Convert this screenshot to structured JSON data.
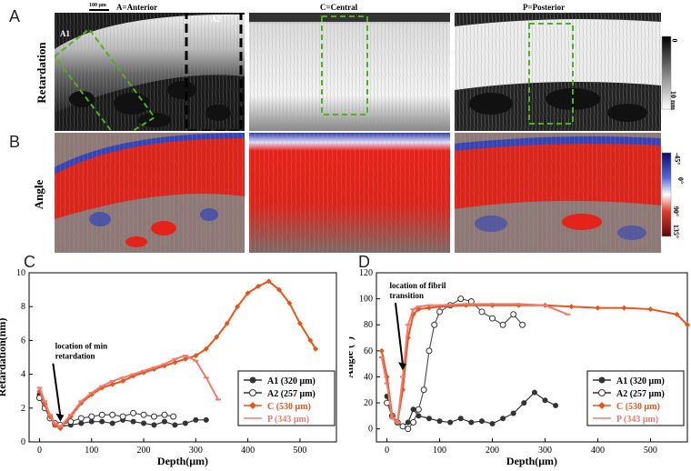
{
  "panel_letters": {
    "a": "A",
    "b": "B",
    "c": "C",
    "d": "D"
  },
  "row_labels": {
    "retardation": "Retardation",
    "angle": "Angle"
  },
  "image_titles": {
    "anterior": "A=Anterior",
    "central": "C=Central",
    "posterior": "P=Posterior"
  },
  "region_labels": {
    "a1": "A1",
    "a2": "A2"
  },
  "scale_bar": "100 μm",
  "colorbar_retardation": {
    "top": "0",
    "bottom": "10 nm"
  },
  "colorbar_angle": {
    "top1": "-45°",
    "top2": "0°",
    "bottom1": "90°",
    "bottom2": "135°"
  },
  "colors": {
    "a1": "#333333",
    "a2": "#ffffff",
    "c": "#e8541a",
    "p": "#f07a70",
    "roi": "#4db31a"
  },
  "chart_data": [
    {
      "type": "line",
      "panel": "C",
      "xlabel": "Depth(μm)",
      "ylabel": "Retardation(nm)",
      "xlim": [
        -20,
        570
      ],
      "ylim": [
        0,
        10
      ],
      "xticks": [
        0,
        100,
        200,
        300,
        400,
        500
      ],
      "yticks": [
        0,
        2,
        4,
        6,
        8,
        10
      ],
      "annotation": {
        "text": [
          "location of min",
          "retardation"
        ],
        "x": 30,
        "y": 5.5,
        "arrow_to": [
          40,
          1.2
        ]
      },
      "series": [
        {
          "name": "A1 (320 μm)",
          "x": [
            0,
            10,
            20,
            30,
            40,
            60,
            80,
            100,
            120,
            140,
            160,
            180,
            200,
            220,
            240,
            260,
            280,
            300,
            320
          ],
          "y": [
            2.8,
            2.2,
            1.5,
            1.0,
            0.9,
            1.0,
            1.1,
            1.2,
            1.2,
            1.1,
            1.3,
            1.2,
            1.1,
            1.0,
            1.2,
            1.0,
            1.1,
            1.3,
            1.3
          ]
        },
        {
          "name": "A2 (257 μm)",
          "x": [
            0,
            10,
            20,
            30,
            40,
            60,
            80,
            100,
            120,
            140,
            160,
            180,
            200,
            220,
            240,
            257
          ],
          "y": [
            2.6,
            2.0,
            1.4,
            1.1,
            1.0,
            1.2,
            1.4,
            1.5,
            1.6,
            1.6,
            1.5,
            1.7,
            1.6,
            1.5,
            1.6,
            1.5
          ]
        },
        {
          "name": "C (530 μm)",
          "x": [
            0,
            10,
            20,
            30,
            40,
            60,
            80,
            100,
            120,
            140,
            160,
            180,
            200,
            220,
            240,
            260,
            280,
            300,
            320,
            340,
            360,
            380,
            400,
            420,
            440,
            460,
            480,
            500,
            520,
            530
          ],
          "y": [
            3.0,
            2.2,
            1.5,
            1.0,
            0.8,
            1.5,
            2.3,
            2.8,
            3.2,
            3.4,
            3.6,
            3.9,
            4.1,
            4.3,
            4.5,
            4.7,
            4.9,
            5.1,
            5.5,
            6.2,
            7.0,
            8.0,
            8.8,
            9.2,
            9.5,
            9.0,
            8.2,
            7.0,
            6.0,
            5.5
          ]
        },
        {
          "name": "P (343 μm)",
          "x": [
            0,
            10,
            20,
            30,
            40,
            60,
            80,
            100,
            120,
            140,
            160,
            180,
            200,
            220,
            240,
            260,
            280,
            300,
            320,
            343
          ],
          "y": [
            3.2,
            2.4,
            1.6,
            1.1,
            0.9,
            1.6,
            2.4,
            2.9,
            3.3,
            3.6,
            3.8,
            4.0,
            4.2,
            4.4,
            4.6,
            4.9,
            5.1,
            4.8,
            3.8,
            2.5
          ]
        }
      ],
      "legend": "bottom-right"
    },
    {
      "type": "line",
      "panel": "D",
      "xlabel": "Depth(μm)",
      "ylabel": "Angle (°)",
      "xlim": [
        -20,
        570
      ],
      "ylim": [
        -10,
        120
      ],
      "xticks": [
        0,
        100,
        200,
        300,
        400,
        500
      ],
      "yticks": [
        0,
        20,
        40,
        60,
        80,
        100,
        120
      ],
      "annotation": {
        "text": [
          "location of fibril",
          "transition"
        ],
        "x": 5,
        "y": 108,
        "arrow_to": [
          30,
          45
        ]
      },
      "series": [
        {
          "name": "A1 (320 μm)",
          "x": [
            0,
            10,
            20,
            30,
            40,
            50,
            60,
            80,
            100,
            120,
            140,
            160,
            180,
            200,
            220,
            240,
            260,
            280,
            300,
            320
          ],
          "y": [
            25,
            10,
            5,
            2,
            5,
            15,
            10,
            8,
            6,
            5,
            8,
            5,
            6,
            4,
            8,
            12,
            20,
            28,
            22,
            18
          ]
        },
        {
          "name": "A2 (257 μm)",
          "x": [
            0,
            10,
            20,
            30,
            40,
            50,
            60,
            70,
            80,
            90,
            100,
            120,
            140,
            160,
            180,
            200,
            220,
            240,
            257
          ],
          "y": [
            20,
            10,
            5,
            2,
            0,
            5,
            15,
            30,
            60,
            80,
            90,
            95,
            100,
            98,
            90,
            85,
            80,
            88,
            80
          ]
        },
        {
          "name": "C (530 μm)",
          "x": [
            -10,
            0,
            10,
            20,
            30,
            40,
            50,
            60,
            80,
            100,
            150,
            200,
            250,
            300,
            350,
            400,
            450,
            500,
            550,
            570
          ],
          "y": [
            60,
            40,
            10,
            5,
            30,
            70,
            88,
            92,
            93,
            94,
            95,
            95,
            95,
            95,
            94,
            93,
            93,
            92,
            88,
            80
          ]
        },
        {
          "name": "P (343 μm)",
          "x": [
            -10,
            0,
            10,
            20,
            30,
            40,
            50,
            60,
            80,
            100,
            150,
            200,
            250,
            300,
            343
          ],
          "y": [
            55,
            35,
            8,
            5,
            40,
            80,
            92,
            94,
            95,
            95,
            96,
            96,
            96,
            95,
            88
          ]
        }
      ],
      "legend": "bottom-right"
    }
  ]
}
